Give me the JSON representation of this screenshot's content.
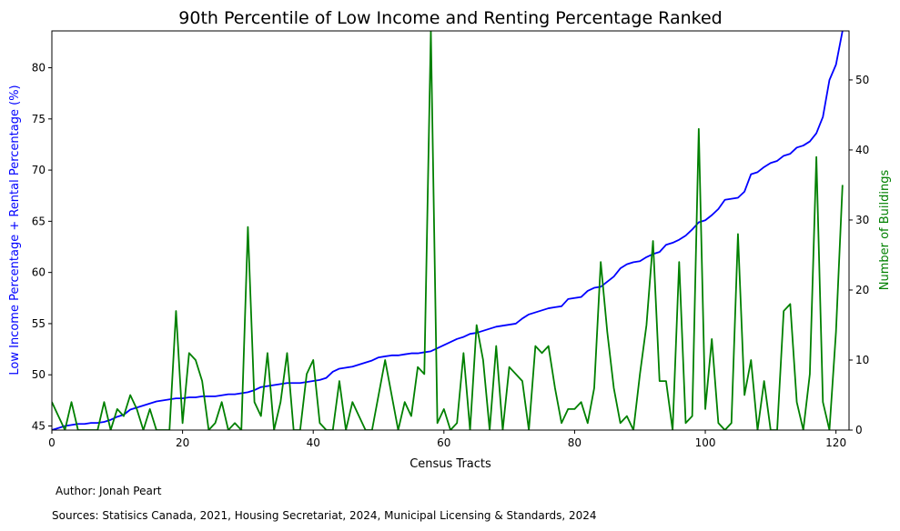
{
  "chart_data": {
    "type": "line",
    "title": "90th Percentile of Low Income and Renting Percentage Ranked",
    "xlabel": "Census Tracts",
    "ylabel_left": "Low Income Percentage + Rental Percentage (%)",
    "ylabel_right": "Number of Buildings",
    "xlim": [
      0,
      122
    ],
    "ylim_left": [
      44.6,
      83.6
    ],
    "ylim_right": [
      0,
      57
    ],
    "x_ticks": [
      0,
      20,
      40,
      60,
      80,
      100,
      120
    ],
    "y_ticks_left": [
      45,
      50,
      55,
      60,
      65,
      70,
      75,
      80
    ],
    "y_ticks_right": [
      0,
      10,
      20,
      30,
      40,
      50
    ],
    "grid": false,
    "colors": {
      "left": "#0000ff",
      "right": "#008000"
    },
    "series": [
      {
        "axis": "left",
        "color": "#0000ff",
        "values": [
          44.6,
          44.8,
          45.0,
          45.1,
          45.2,
          45.2,
          45.3,
          45.3,
          45.4,
          45.6,
          45.9,
          46.1,
          46.6,
          46.8,
          47.0,
          47.2,
          47.4,
          47.5,
          47.6,
          47.7,
          47.7,
          47.8,
          47.8,
          47.9,
          47.9,
          47.9,
          48.0,
          48.1,
          48.1,
          48.2,
          48.3,
          48.5,
          48.8,
          48.9,
          49.0,
          49.1,
          49.2,
          49.2,
          49.2,
          49.3,
          49.4,
          49.5,
          49.7,
          50.3,
          50.6,
          50.7,
          50.8,
          51.0,
          51.2,
          51.4,
          51.7,
          51.8,
          51.9,
          51.9,
          52.0,
          52.1,
          52.1,
          52.2,
          52.3,
          52.6,
          52.9,
          53.2,
          53.5,
          53.7,
          54.0,
          54.1,
          54.3,
          54.5,
          54.7,
          54.8,
          54.9,
          55.0,
          55.5,
          55.9,
          56.1,
          56.3,
          56.5,
          56.6,
          56.7,
          57.4,
          57.5,
          57.6,
          58.2,
          58.5,
          58.6,
          59.1,
          59.6,
          60.4,
          60.8,
          61.0,
          61.1,
          61.5,
          61.8,
          62.0,
          62.7,
          62.9,
          63.2,
          63.6,
          64.2,
          64.9,
          65.1,
          65.6,
          66.2,
          67.1,
          67.2,
          67.3,
          67.9,
          69.6,
          69.8,
          70.3,
          70.7,
          70.9,
          71.4,
          71.6,
          72.2,
          72.4,
          72.8,
          73.6,
          75.2,
          78.8,
          80.3,
          83.6
        ]
      },
      {
        "axis": "right",
        "color": "#008000",
        "values": [
          4,
          2,
          0,
          4,
          0,
          0,
          0,
          0,
          4,
          0,
          3,
          2,
          5,
          3,
          0,
          3,
          0,
          0,
          0,
          17,
          1,
          11,
          10,
          7,
          0,
          1,
          4,
          0,
          1,
          0,
          29,
          4,
          2,
          11,
          0,
          4,
          11,
          0,
          0,
          8,
          10,
          1,
          0,
          0,
          7,
          0,
          4,
          2,
          0,
          0,
          5,
          10,
          5,
          0,
          4,
          2,
          9,
          8,
          57,
          1,
          3,
          0,
          1,
          11,
          0,
          15,
          10,
          0,
          12,
          0,
          9,
          8,
          7,
          0,
          12,
          11,
          12,
          6,
          1,
          3,
          3,
          4,
          1,
          6,
          24,
          14,
          6,
          1,
          2,
          0,
          8,
          15,
          27,
          7,
          7,
          0,
          24,
          1,
          2,
          43,
          3,
          13,
          1,
          0,
          1,
          28,
          5,
          10,
          0,
          7,
          0,
          0,
          17,
          18,
          4,
          0,
          8,
          39,
          4,
          0,
          14,
          35
        ]
      }
    ]
  },
  "footer": {
    "author": "Author: Jonah Peart",
    "sources": "Sources: Statisics Canada, 2021, Housing Secretariat, 2024, Municipal Licensing & Standards, 2024"
  }
}
